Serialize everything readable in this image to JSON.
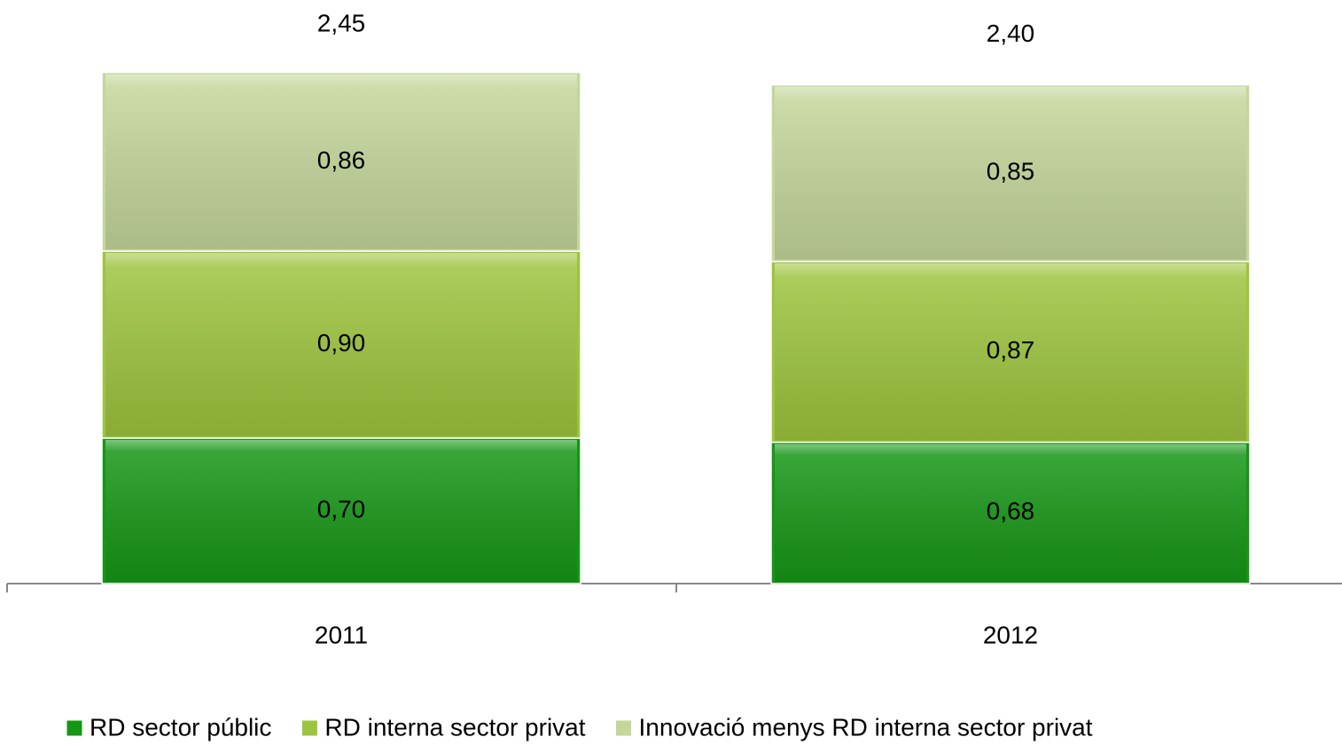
{
  "chart_data": {
    "type": "stacked_bar",
    "categories": [
      "2011",
      "2012"
    ],
    "series": [
      {
        "name": "RD sector públic",
        "color": "#169616",
        "values": [
          0.7,
          0.68
        ],
        "value_labels": [
          "0,70",
          "0,68"
        ]
      },
      {
        "name": "RD interna sector privat",
        "color": "#9dc43e",
        "values": [
          0.9,
          0.87
        ],
        "value_labels": [
          "0,90",
          "0,87"
        ]
      },
      {
        "name": "Innovació menys RD interna sector privat",
        "color": "#c4d69a",
        "values": [
          0.86,
          0.85
        ],
        "value_labels": [
          "0,86",
          "0,85"
        ]
      }
    ],
    "totals": {
      "values": [
        2.45,
        2.4
      ],
      "value_labels": [
        "2,45",
        "2,40"
      ]
    },
    "legend": "bottom"
  }
}
